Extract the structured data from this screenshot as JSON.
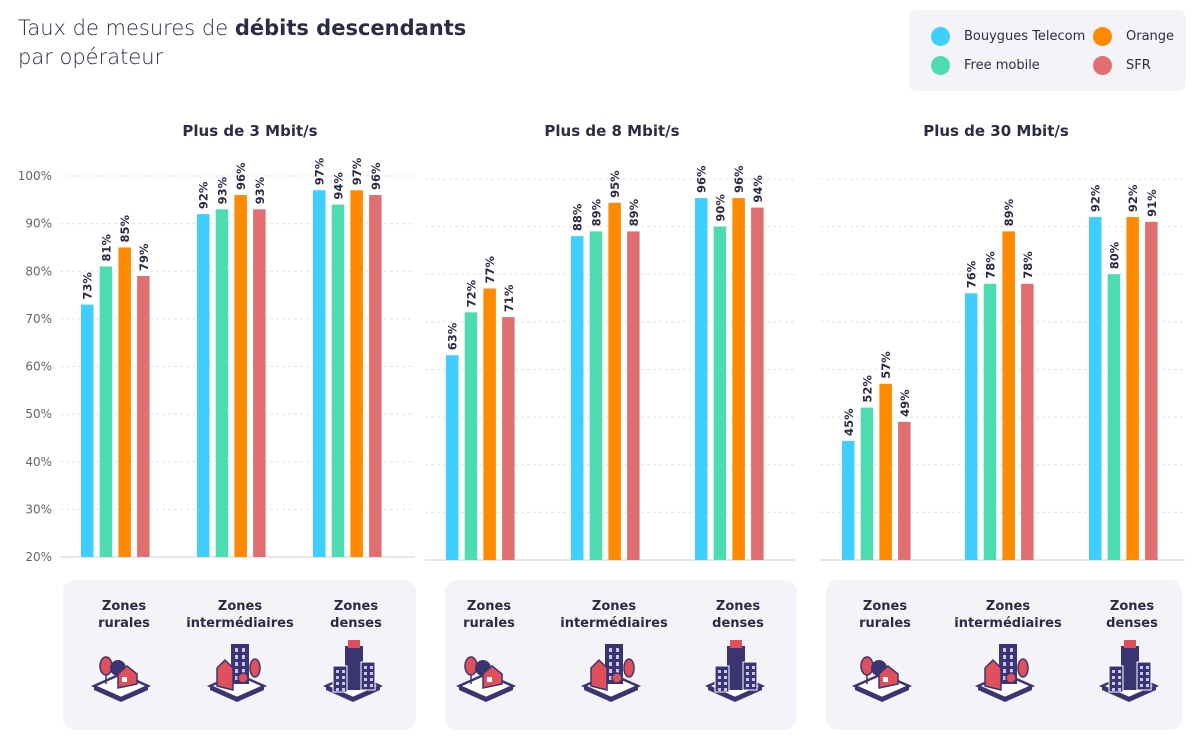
{
  "title": {
    "part1": "Taux de mesures de ",
    "bold": "débits descendants",
    "line2": "par opérateur"
  },
  "legend": [
    {
      "name": "Bouygues Telecom",
      "color": "#3fcfff"
    },
    {
      "name": "Free mobile",
      "color": "#4ddcb2"
    },
    {
      "name": "Orange",
      "color": "#ff8a00"
    },
    {
      "name": "SFR",
      "color": "#e07070"
    }
  ],
  "zones": [
    "Zones rurales",
    "Zones intermédiaires",
    "Zones denses"
  ],
  "zone_lines": [
    [
      "Zones",
      "rurales"
    ],
    [
      "Zones",
      "intermédiaires"
    ],
    [
      "Zones",
      "denses"
    ]
  ],
  "chart_data": [
    {
      "type": "bar",
      "title": "Plus de 3 Mbit/s",
      "ylim": [
        20,
        100
      ],
      "yticks": [
        "20%",
        "30%",
        "40%",
        "50%",
        "60%",
        "70%",
        "80%",
        "90%",
        "100%"
      ],
      "categories": [
        "Zones rurales",
        "Zones intermédiaires",
        "Zones denses"
      ],
      "series": [
        {
          "name": "Bouygues Telecom",
          "values": [
            73,
            92,
            97
          ]
        },
        {
          "name": "Free mobile",
          "values": [
            81,
            93,
            94
          ]
        },
        {
          "name": "Orange",
          "values": [
            85,
            96,
            97
          ]
        },
        {
          "name": "SFR",
          "values": [
            79,
            93,
            96
          ]
        }
      ]
    },
    {
      "type": "bar",
      "title": "Plus de 8 Mbit/s",
      "ylim": [
        20,
        100
      ],
      "categories": [
        "Zones rurales",
        "Zones intermédiaires",
        "Zones denses"
      ],
      "series": [
        {
          "name": "Bouygues Telecom",
          "values": [
            63,
            88,
            96
          ]
        },
        {
          "name": "Free mobile",
          "values": [
            72,
            89,
            90
          ]
        },
        {
          "name": "Orange",
          "values": [
            77,
            95,
            96
          ]
        },
        {
          "name": "SFR",
          "values": [
            71,
            89,
            94
          ]
        }
      ]
    },
    {
      "type": "bar",
      "title": "Plus de 30 Mbit/s",
      "ylim": [
        20,
        100
      ],
      "categories": [
        "Zones rurales",
        "Zones intermédiaires",
        "Zones denses"
      ],
      "series": [
        {
          "name": "Bouygues Telecom",
          "values": [
            45,
            76,
            92
          ]
        },
        {
          "name": "Free mobile",
          "values": [
            52,
            78,
            80
          ]
        },
        {
          "name": "Orange",
          "values": [
            57,
            89,
            92
          ]
        },
        {
          "name": "SFR",
          "values": [
            49,
            78,
            91
          ]
        }
      ]
    }
  ]
}
